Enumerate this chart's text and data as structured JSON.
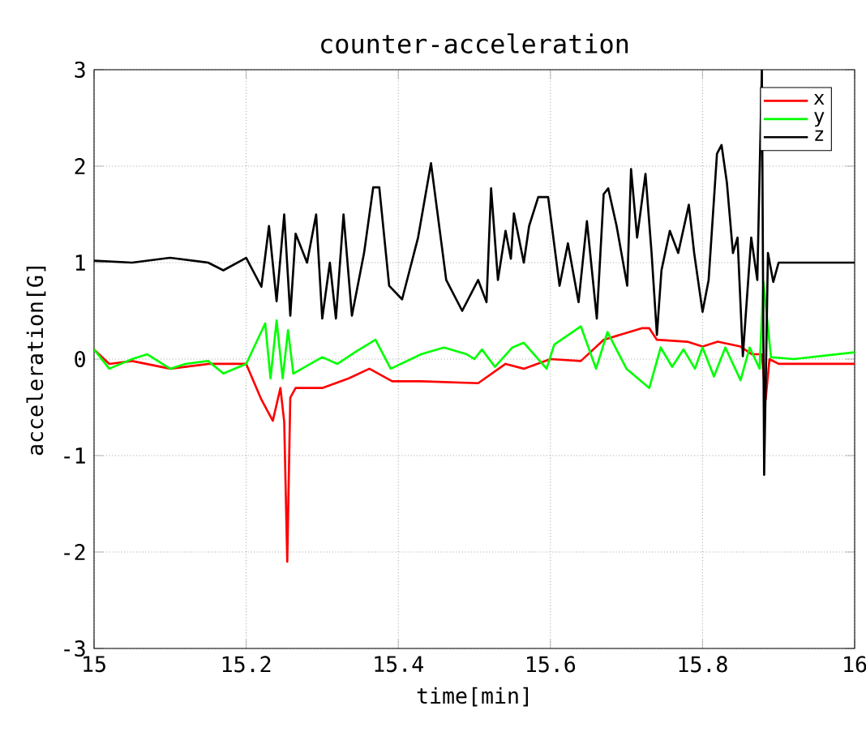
{
  "chart_data": {
    "type": "line",
    "title": "counter-acceleration",
    "xlabel": "time[min]",
    "ylabel": "acceleration[G]",
    "xlim": [
      15,
      16
    ],
    "ylim": [
      -3,
      3
    ],
    "xticks": [
      15,
      15.2,
      15.4,
      15.6,
      15.8,
      16
    ],
    "yticks": [
      -3,
      -2,
      -1,
      0,
      1,
      2,
      3
    ],
    "grid": true,
    "legend": "top right",
    "series": [
      {
        "name": "x",
        "color": "#ff0000",
        "x": [
          15.0,
          15.02,
          15.05,
          15.1,
          15.15,
          15.2,
          15.22,
          15.235,
          15.245,
          15.25,
          15.254,
          15.258,
          15.265,
          15.3,
          15.335,
          15.362,
          15.392,
          15.43,
          15.505,
          15.541,
          15.565,
          15.6,
          15.64,
          15.67,
          15.72,
          15.73,
          15.74,
          15.78,
          15.8,
          15.82,
          15.85,
          15.865,
          15.878,
          15.883,
          15.888,
          15.9,
          15.95,
          16.0
        ],
        "values": [
          0.1,
          -0.05,
          -0.02,
          -0.1,
          -0.05,
          -0.05,
          -0.42,
          -0.64,
          -0.3,
          -0.65,
          -2.1,
          -0.4,
          -0.3,
          -0.3,
          -0.2,
          -0.1,
          -0.23,
          -0.23,
          -0.25,
          -0.05,
          -0.1,
          0.0,
          -0.02,
          0.2,
          0.32,
          0.32,
          0.2,
          0.18,
          0.13,
          0.18,
          0.13,
          0.05,
          0.05,
          -0.42,
          0.0,
          -0.05,
          -0.05,
          -0.05
        ]
      },
      {
        "name": "y",
        "color": "#00ff00",
        "x": [
          15.0,
          15.02,
          15.05,
          15.07,
          15.1,
          15.12,
          15.15,
          15.17,
          15.2,
          15.225,
          15.232,
          15.24,
          15.248,
          15.255,
          15.262,
          15.3,
          15.32,
          15.345,
          15.37,
          15.39,
          15.43,
          15.46,
          15.49,
          15.5,
          15.51,
          15.527,
          15.55,
          15.565,
          15.595,
          15.605,
          15.64,
          15.66,
          15.675,
          15.7,
          15.73,
          15.745,
          15.76,
          15.775,
          15.79,
          15.8,
          15.815,
          15.83,
          15.85,
          15.862,
          15.875,
          15.88,
          15.89,
          15.92,
          16.0
        ],
        "values": [
          0.1,
          -0.1,
          0.0,
          0.05,
          -0.1,
          -0.05,
          -0.02,
          -0.15,
          -0.05,
          0.37,
          -0.2,
          0.4,
          -0.2,
          0.3,
          -0.15,
          0.02,
          -0.05,
          0.08,
          0.2,
          -0.1,
          0.05,
          0.12,
          0.05,
          0.0,
          0.1,
          -0.08,
          0.12,
          0.17,
          -0.1,
          0.15,
          0.34,
          -0.1,
          0.28,
          -0.1,
          -0.3,
          0.12,
          -0.08,
          0.1,
          -0.1,
          0.12,
          -0.18,
          0.12,
          -0.22,
          0.12,
          -0.1,
          0.8,
          0.02,
          0.0,
          0.07
        ]
      },
      {
        "name": "z",
        "color": "#000000",
        "x": [
          15.0,
          15.05,
          15.1,
          15.15,
          15.17,
          15.2,
          15.22,
          15.23,
          15.24,
          15.25,
          15.258,
          15.265,
          15.28,
          15.292,
          15.3,
          15.31,
          15.318,
          15.328,
          15.339,
          15.355,
          15.367,
          15.375,
          15.388,
          15.405,
          15.426,
          15.443,
          15.463,
          15.484,
          15.505,
          15.516,
          15.522,
          15.531,
          15.541,
          15.548,
          15.552,
          15.565,
          15.572,
          15.584,
          15.597,
          15.612,
          15.623,
          15.637,
          15.648,
          15.661,
          15.67,
          15.676,
          15.687,
          15.701,
          15.706,
          15.714,
          15.725,
          15.733,
          15.74,
          15.746,
          15.757,
          15.768,
          15.782,
          15.789,
          15.8,
          15.808,
          15.819,
          15.825,
          15.832,
          15.84,
          15.846,
          15.853,
          15.864,
          15.872,
          15.878,
          15.881,
          15.886,
          15.893,
          15.9,
          16.0
        ],
        "values": [
          1.02,
          1.0,
          1.05,
          1.0,
          0.92,
          1.05,
          0.75,
          1.38,
          0.6,
          1.5,
          0.45,
          1.3,
          1.0,
          1.5,
          0.42,
          1.0,
          0.42,
          1.5,
          0.45,
          1.1,
          1.78,
          1.78,
          0.76,
          0.62,
          1.26,
          2.03,
          0.82,
          0.5,
          0.82,
          0.59,
          1.77,
          0.82,
          1.33,
          1.04,
          1.51,
          1.0,
          1.38,
          1.68,
          1.68,
          0.76,
          1.2,
          0.59,
          1.43,
          0.42,
          1.71,
          1.77,
          1.38,
          0.76,
          1.97,
          1.26,
          1.92,
          1.1,
          0.25,
          0.92,
          1.33,
          1.1,
          1.6,
          1.1,
          0.49,
          0.82,
          2.13,
          2.22,
          1.83,
          1.1,
          1.26,
          0.03,
          1.26,
          0.82,
          3.0,
          -1.2,
          1.1,
          0.8,
          1.0,
          1.0
        ]
      }
    ]
  }
}
